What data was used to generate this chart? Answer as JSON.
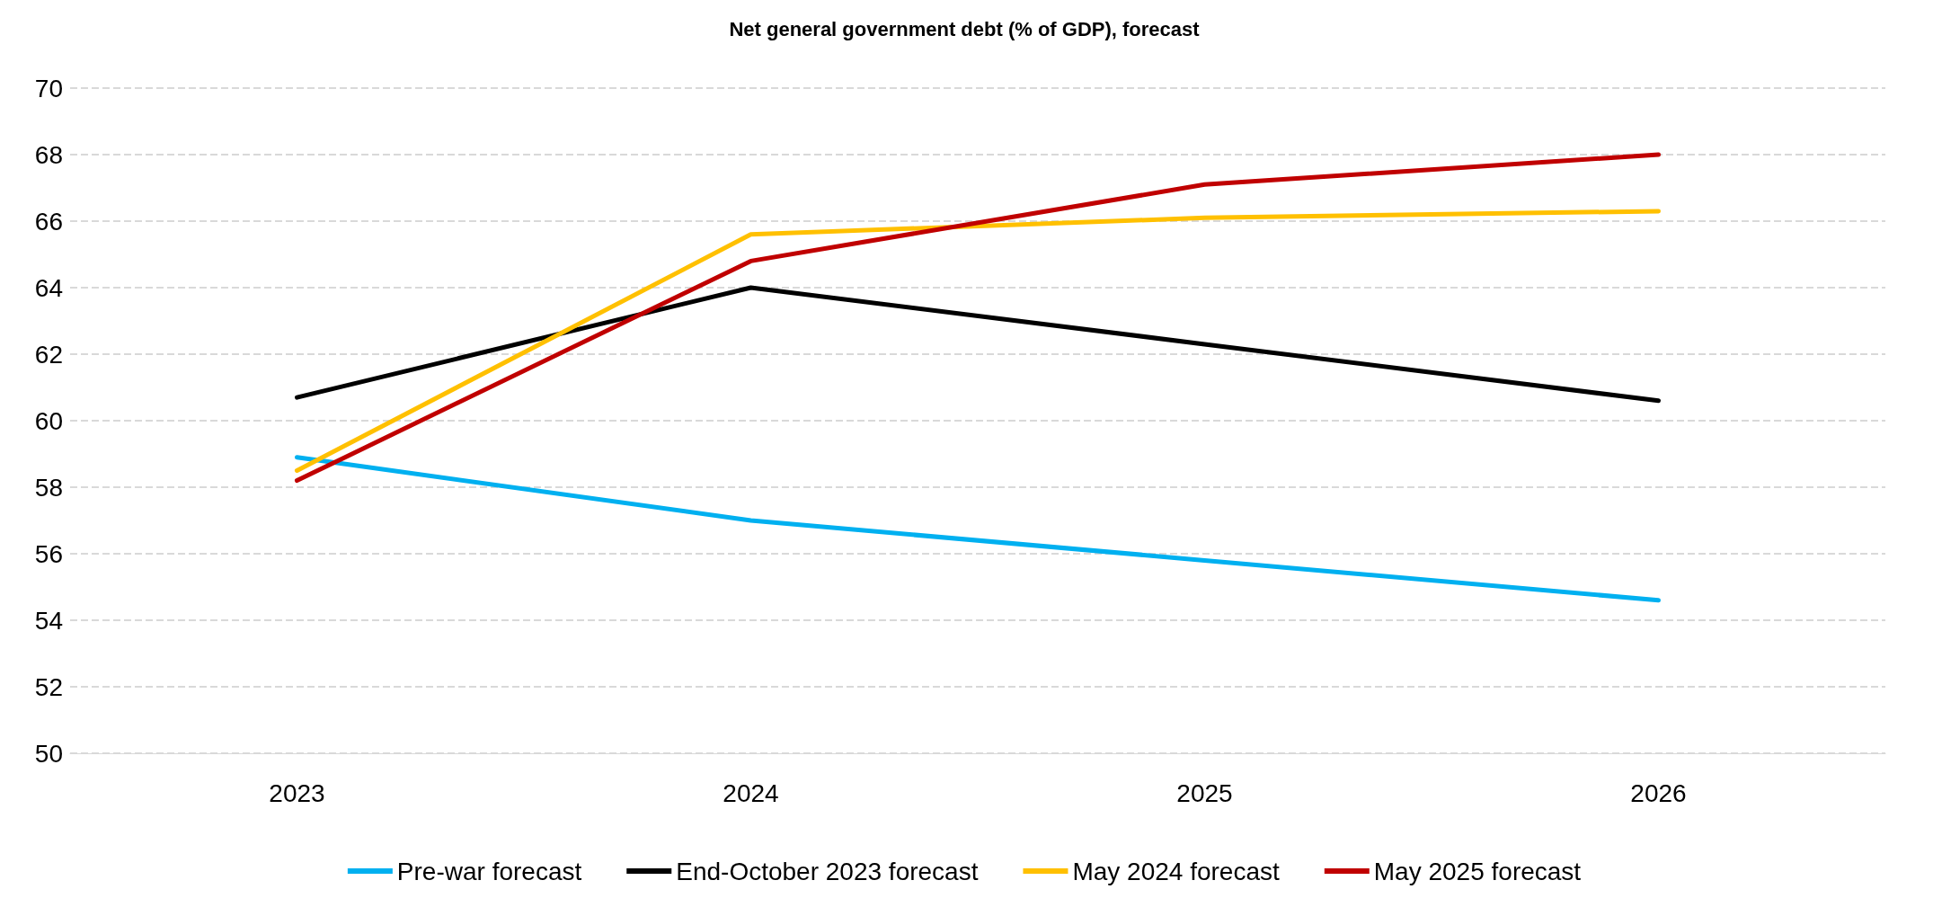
{
  "chart_data": {
    "type": "line",
    "title": "Net general government debt (% of GDP), forecast",
    "categories": [
      "2023",
      "2024",
      "2025",
      "2026"
    ],
    "series": [
      {
        "name": "Pre-war forecast",
        "color": "#00b0f0",
        "values": [
          58.9,
          57.0,
          55.8,
          54.6
        ]
      },
      {
        "name": "End-October 2023 forecast",
        "color": "#000000",
        "values": [
          60.7,
          64.0,
          62.3,
          60.6
        ]
      },
      {
        "name": "May 2024 forecast",
        "color": "#ffc000",
        "values": [
          58.5,
          65.6,
          66.1,
          66.3
        ]
      },
      {
        "name": "May 2025 forecast",
        "color": "#c00000",
        "values": [
          58.2,
          64.8,
          67.1,
          68.0
        ]
      }
    ],
    "ylim": [
      50,
      70
    ],
    "yticks": [
      50,
      52,
      54,
      56,
      58,
      60,
      62,
      64,
      66,
      68,
      70
    ],
    "grid": "y",
    "legend": "bottom",
    "marker": "none",
    "line_style": "solid"
  }
}
